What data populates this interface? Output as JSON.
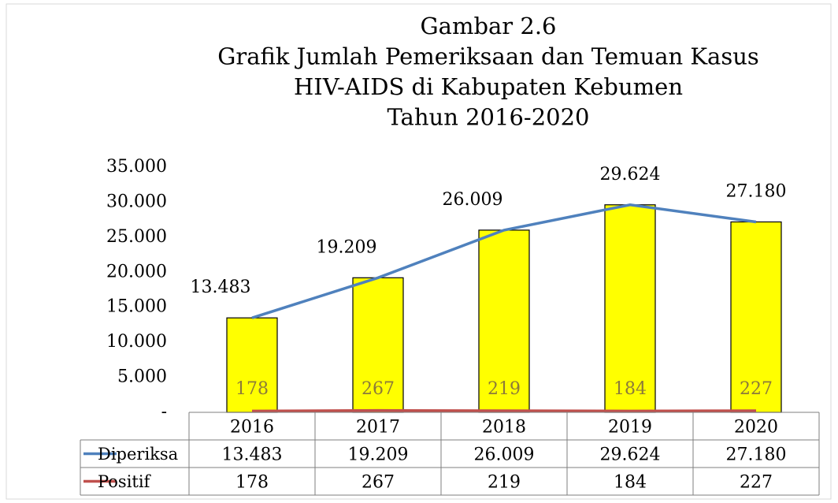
{
  "chart_data": {
    "type": "bar",
    "title": [
      "Gambar 2.6",
      "Grafik Jumlah Pemeriksaan dan Temuan Kasus",
      "HIV-AIDS di Kabupaten Kebumen",
      "Tahun 2016-2020"
    ],
    "categories": [
      "2016",
      "2017",
      "2018",
      "2019",
      "2020"
    ],
    "series": [
      {
        "name": "Diperiksa",
        "color": "#4f81bd",
        "bar_color": "#ffff00",
        "values": [
          13483,
          19209,
          26009,
          29624,
          27180
        ],
        "value_labels": [
          "13.483",
          "19.209",
          "26.009",
          "29.624",
          "27.180"
        ]
      },
      {
        "name": "Positif",
        "color": "#c0504d",
        "label_color": "#8c7a3a",
        "values": [
          178,
          267,
          219,
          184,
          227
        ]
      }
    ],
    "ylim": [
      0,
      35000
    ],
    "yticks": [
      {
        "value": 0,
        "label": "-"
      },
      {
        "value": 5000,
        "label": "5.000"
      },
      {
        "value": 10000,
        "label": "10.000"
      },
      {
        "value": 15000,
        "label": "15.000"
      },
      {
        "value": 20000,
        "label": "20.000"
      },
      {
        "value": 25000,
        "label": "25.000"
      },
      {
        "value": 30000,
        "label": "30.000"
      },
      {
        "value": 35000,
        "label": "35.000"
      }
    ],
    "data_table": true
  }
}
